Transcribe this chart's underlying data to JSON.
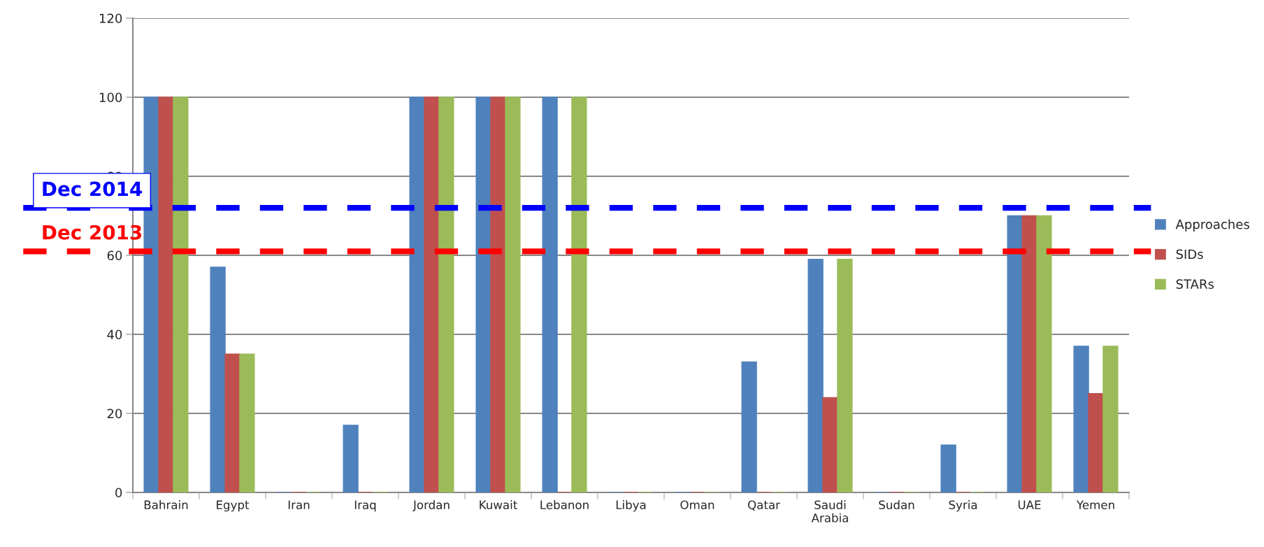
{
  "chart_data": {
    "type": "bar",
    "categories": [
      "Bahrain",
      "Egypt",
      "Iran",
      "Iraq",
      "Jordan",
      "Kuwait",
      "Lebanon",
      "Libya",
      "Oman",
      "Qatar",
      "Saudi\nArabia",
      "Sudan",
      "Syria",
      "UAE",
      "Yemen"
    ],
    "series": [
      {
        "name": "Approaches",
        "color": "#4f81bd",
        "values": [
          100,
          57,
          0,
          17,
          100,
          100,
          100,
          0,
          0,
          33,
          59,
          0,
          12,
          70,
          37
        ]
      },
      {
        "name": "SIDs",
        "color": "#c0504d",
        "values": [
          100,
          35,
          0,
          0,
          100,
          100,
          0,
          0,
          0,
          0,
          24,
          0,
          0,
          70,
          25
        ]
      },
      {
        "name": "STARs",
        "color": "#9bbb59",
        "values": [
          100,
          35,
          0,
          0,
          100,
          100,
          100,
          0,
          0,
          0,
          59,
          0,
          0,
          70,
          37
        ]
      }
    ],
    "ylim": [
      0,
      120
    ],
    "yticks": [
      0,
      20,
      40,
      60,
      80,
      100,
      120
    ],
    "grid": "y",
    "legend": "right",
    "ref_lines": [
      {
        "axis": "y",
        "value": 72,
        "label": "Dec 2014",
        "color": "#0000ff",
        "line_style": "dashed"
      },
      {
        "axis": "y",
        "value": 61,
        "label": "Dec 2013",
        "color": "#ff0000",
        "line_style": "dashed"
      }
    ]
  }
}
